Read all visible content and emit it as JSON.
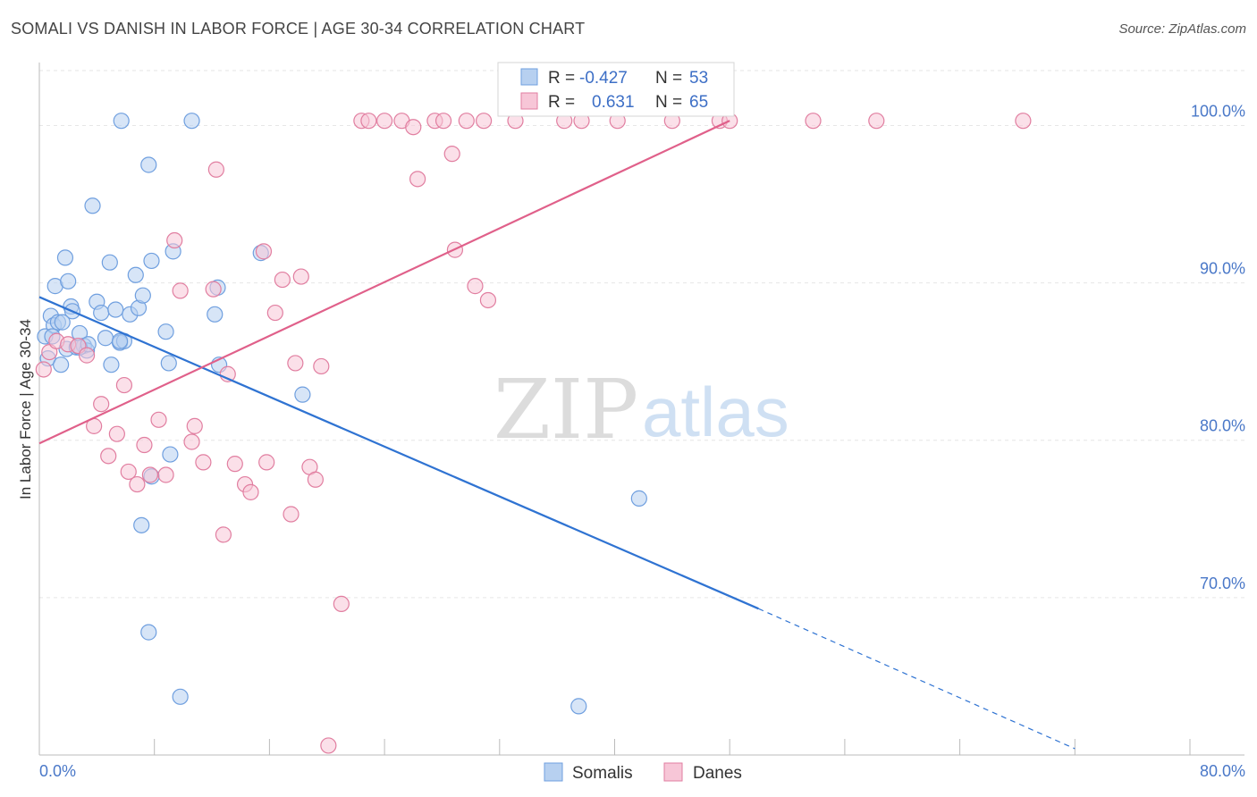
{
  "chart_data": {
    "type": "scatter",
    "title": "SOMALI VS DANISH IN LABOR FORCE | AGE 30-34 CORRELATION CHART",
    "source": "Source: ZipAtlas.com",
    "ylabel": "In Labor Force | Age 30-34",
    "xlabel": "",
    "xlim": [
      0,
      80
    ],
    "ylim": [
      60,
      104
    ],
    "x_tick_labels": [
      "0.0%",
      "80.0%"
    ],
    "y_tick_labels": [
      {
        "value": 100,
        "label": "100.0%"
      },
      {
        "value": 90,
        "label": "90.0%"
      },
      {
        "value": 80,
        "label": "80.0%"
      },
      {
        "value": 70,
        "label": "70.0%"
      }
    ],
    "grid": true,
    "legend_position": "bottom-center",
    "stats": {
      "r_label": "R =",
      "n_label": "N =",
      "rows": [
        {
          "series": "Somalis",
          "r": "-0.427",
          "n": "53"
        },
        {
          "series": "Danes",
          "r": "0.631",
          "n": "65"
        }
      ]
    },
    "watermark": {
      "zip": "ZIP",
      "atlas": "atlas"
    },
    "series": [
      {
        "name": "Somalis",
        "color": "#6f9fdf",
        "fill": "#b7d0f0",
        "trend": {
          "x0": 0,
          "y0": 89.1,
          "x1": 50,
          "y1": 69.3,
          "dash_x1": 72,
          "dash_y1": 60.4
        },
        "points": [
          [
            0.4,
            86.6
          ],
          [
            0.6,
            85.2
          ],
          [
            0.8,
            87.9
          ],
          [
            1.0,
            87.3
          ],
          [
            1.1,
            89.8
          ],
          [
            1.3,
            87.5
          ],
          [
            1.5,
            84.8
          ],
          [
            1.8,
            91.6
          ],
          [
            1.9,
            85.8
          ],
          [
            2.0,
            90.1
          ],
          [
            2.2,
            88.5
          ],
          [
            2.3,
            88.2
          ],
          [
            2.6,
            85.9
          ],
          [
            2.8,
            86.8
          ],
          [
            3.1,
            86.0
          ],
          [
            3.3,
            85.7
          ],
          [
            3.7,
            94.9
          ],
          [
            4.0,
            88.8
          ],
          [
            4.3,
            88.1
          ],
          [
            4.6,
            86.5
          ],
          [
            4.9,
            91.3
          ],
          [
            5.0,
            84.8
          ],
          [
            5.3,
            88.3
          ],
          [
            5.6,
            86.2
          ],
          [
            5.7,
            100.3
          ],
          [
            5.9,
            86.3
          ],
          [
            6.3,
            88.0
          ],
          [
            6.7,
            90.5
          ],
          [
            6.9,
            88.4
          ],
          [
            7.2,
            89.2
          ],
          [
            7.6,
            97.5
          ],
          [
            7.8,
            91.4
          ],
          [
            8.8,
            86.9
          ],
          [
            9.0,
            84.9
          ],
          [
            9.1,
            79.1
          ],
          [
            9.3,
            92.0
          ],
          [
            9.8,
            63.7
          ],
          [
            10.6,
            100.3
          ],
          [
            12.2,
            88.0
          ],
          [
            12.4,
            89.7
          ],
          [
            12.5,
            84.8
          ],
          [
            15.4,
            91.9
          ],
          [
            18.3,
            82.9
          ],
          [
            7.1,
            74.6
          ],
          [
            7.8,
            77.7
          ],
          [
            7.6,
            67.8
          ],
          [
            37.5,
            63.1
          ],
          [
            41.7,
            76.3
          ],
          [
            2.8,
            85.9
          ],
          [
            3.4,
            86.1
          ],
          [
            1.6,
            87.5
          ],
          [
            0.9,
            86.6
          ],
          [
            5.6,
            86.3
          ]
        ]
      },
      {
        "name": "Danes",
        "color": "#e17ea0",
        "fill": "#f7c6d7",
        "trend": {
          "x0": 0,
          "y0": 79.8,
          "x1": 48,
          "y1": 100.3
        },
        "points": [
          [
            0.3,
            84.5
          ],
          [
            0.7,
            85.6
          ],
          [
            1.2,
            86.3
          ],
          [
            2.0,
            86.1
          ],
          [
            2.7,
            86.0
          ],
          [
            3.3,
            85.4
          ],
          [
            3.8,
            80.9
          ],
          [
            4.3,
            82.3
          ],
          [
            4.8,
            79.0
          ],
          [
            5.4,
            80.4
          ],
          [
            5.9,
            83.5
          ],
          [
            6.2,
            78.0
          ],
          [
            6.8,
            77.2
          ],
          [
            7.3,
            79.7
          ],
          [
            7.7,
            77.8
          ],
          [
            8.3,
            81.3
          ],
          [
            8.8,
            77.8
          ],
          [
            9.4,
            92.7
          ],
          [
            9.8,
            89.5
          ],
          [
            10.6,
            79.9
          ],
          [
            10.8,
            80.9
          ],
          [
            11.4,
            78.6
          ],
          [
            12.1,
            89.6
          ],
          [
            12.3,
            97.2
          ],
          [
            13.1,
            84.2
          ],
          [
            12.8,
            74.0
          ],
          [
            13.6,
            78.5
          ],
          [
            14.3,
            77.2
          ],
          [
            14.7,
            76.7
          ],
          [
            15.6,
            92.0
          ],
          [
            15.8,
            78.6
          ],
          [
            16.4,
            88.1
          ],
          [
            16.9,
            90.2
          ],
          [
            17.5,
            75.3
          ],
          [
            17.8,
            84.9
          ],
          [
            18.2,
            90.4
          ],
          [
            18.8,
            78.3
          ],
          [
            19.2,
            77.5
          ],
          [
            19.6,
            84.7
          ],
          [
            20.1,
            60.6
          ],
          [
            21.0,
            69.6
          ],
          [
            22.4,
            100.3
          ],
          [
            22.9,
            100.3
          ],
          [
            24.0,
            100.3
          ],
          [
            25.2,
            100.3
          ],
          [
            26.0,
            99.9
          ],
          [
            26.3,
            96.6
          ],
          [
            27.5,
            100.3
          ],
          [
            28.1,
            100.3
          ],
          [
            28.7,
            98.2
          ],
          [
            28.9,
            92.1
          ],
          [
            29.7,
            100.3
          ],
          [
            30.3,
            89.8
          ],
          [
            30.9,
            100.3
          ],
          [
            31.2,
            88.9
          ],
          [
            33.1,
            100.3
          ],
          [
            36.5,
            100.3
          ],
          [
            37.7,
            100.3
          ],
          [
            40.2,
            100.3
          ],
          [
            44.0,
            100.3
          ],
          [
            47.3,
            100.3
          ],
          [
            48.0,
            100.3
          ],
          [
            53.8,
            100.3
          ],
          [
            58.2,
            100.3
          ],
          [
            68.4,
            100.3
          ]
        ]
      }
    ]
  }
}
